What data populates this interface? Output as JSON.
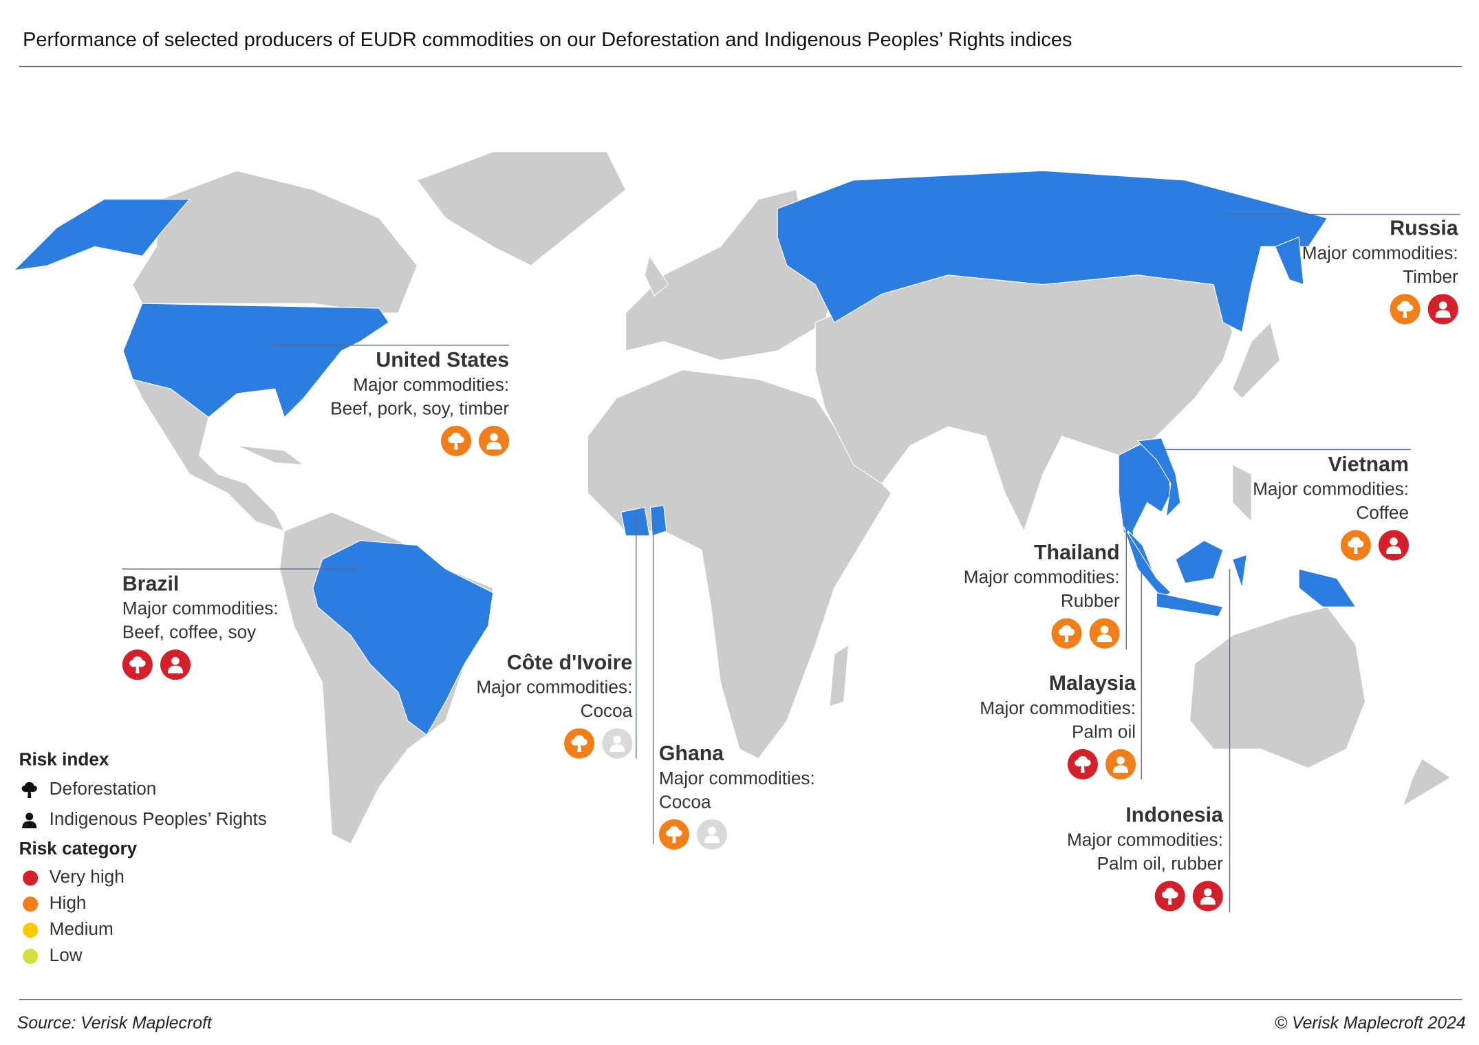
{
  "title": "Performance of selected producers of EUDR commodities on our Deforestation and Indigenous Peoples’ Rights indices",
  "countries": [
    {
      "name": "United States",
      "commodities_label": "Major commodities:",
      "commodities": "Beef, pork, soy, timber",
      "deforestation": "High",
      "indigenous_rights": "High"
    },
    {
      "name": "Russia",
      "commodities_label": "Major commodities:",
      "commodities": "Timber",
      "deforestation": "High",
      "indigenous_rights": "Very high"
    },
    {
      "name": "Vietnam",
      "commodities_label": "Major commodities:",
      "commodities": "Coffee",
      "deforestation": "High",
      "indigenous_rights": "Very high"
    },
    {
      "name": "Thailand",
      "commodities_label": "Major commodities:",
      "commodities": "Rubber",
      "deforestation": "High",
      "indigenous_rights": "High"
    },
    {
      "name": "Malaysia",
      "commodities_label": "Major commodities:",
      "commodities": "Palm oil",
      "deforestation": "Very high",
      "indigenous_rights": "High"
    },
    {
      "name": "Indonesia",
      "commodities_label": "Major commodities:",
      "commodities": "Palm oil, rubber",
      "deforestation": "Very high",
      "indigenous_rights": "Very high"
    },
    {
      "name": "Brazil",
      "commodities_label": "Major commodities:",
      "commodities": "Beef, coffee, soy",
      "deforestation": "Very high",
      "indigenous_rights": "Very high"
    },
    {
      "name": "Côte d'Ivoire",
      "commodities_label": "Major commodities:",
      "commodities": "Cocoa",
      "deforestation": "High",
      "indigenous_rights": null
    },
    {
      "name": "Ghana",
      "commodities_label": "Major commodities:",
      "commodities": "Cocoa",
      "deforestation": "High",
      "indigenous_rights": null
    }
  ],
  "legend": {
    "index_title": "Risk index",
    "indices": [
      "Deforestation",
      "Indigenous Peoples’ Rights"
    ],
    "category_title": "Risk category",
    "categories": [
      {
        "label": "Very high",
        "color": "#d3202a"
      },
      {
        "label": "High",
        "color": "#f07f1a"
      },
      {
        "label": "Medium",
        "color": "#ffc800"
      },
      {
        "label": "Low",
        "color": "#d3df3c"
      }
    ]
  },
  "footer": {
    "source": "Source: Verisk Maplecroft",
    "copyright": "© Verisk Maplecroft 2024"
  }
}
